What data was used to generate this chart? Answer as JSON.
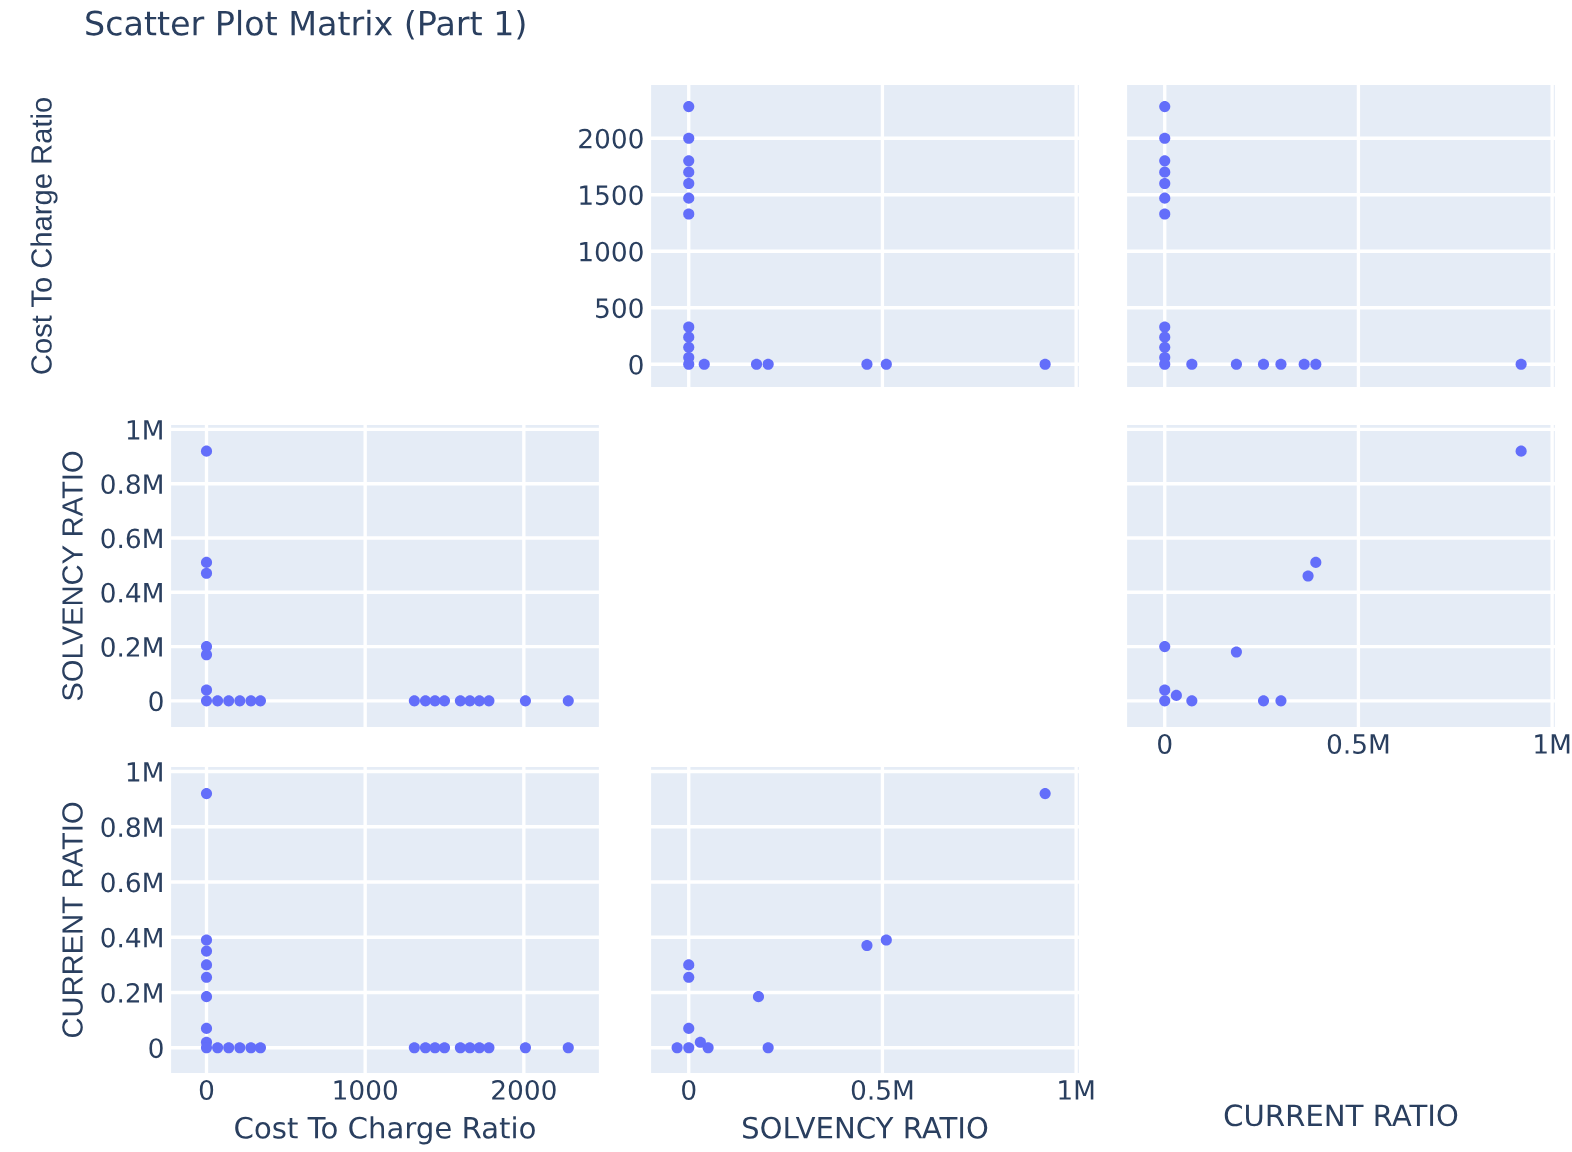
{
  "chart_data": [
    {
      "type": "scatter",
      "title": "Scatter Plot Matrix (Part 1)",
      "ylabel": "Cost To Charge Ratio",
      "tick_labels": "y",
      "grid": true,
      "marker": "circle",
      "xlim": [
        -100000,
        1010000
      ],
      "ylim": [
        -210,
        2480
      ],
      "xticks": [
        {
          "value": 0,
          "label": null
        },
        {
          "value": 500000,
          "label": null
        },
        {
          "value": 1000000,
          "label": null
        }
      ],
      "yticks": [
        0,
        500,
        1000,
        1500,
        2000
      ],
      "x": [
        0,
        0,
        0,
        0,
        0,
        0,
        0,
        0,
        0,
        0,
        0,
        0,
        40000,
        175000,
        205000,
        460000,
        510000,
        920000
      ],
      "series": [
        {
          "color": "#636efa",
          "values": [
            2280,
            2000,
            1800,
            1700,
            1600,
            1470,
            1330,
            330,
            240,
            150,
            60,
            0,
            0,
            0,
            0,
            0,
            0,
            0
          ]
        }
      ]
    },
    {
      "type": "scatter",
      "tick_labels": false,
      "grid": true,
      "marker": "circle",
      "xlim": [
        -100000,
        1010000
      ],
      "ylim": [
        -210,
        2480
      ],
      "xticks": [
        {
          "value": 0,
          "label": null
        },
        {
          "value": 500000,
          "label": null
        },
        {
          "value": 1000000,
          "label": null
        }
      ],
      "yticks": [
        {
          "value": 0,
          "label": null
        },
        {
          "value": 500,
          "label": null
        },
        {
          "value": 1000,
          "label": null
        },
        {
          "value": 1500,
          "label": null
        },
        {
          "value": 2000,
          "label": null
        }
      ],
      "x": [
        0,
        0,
        0,
        0,
        0,
        0,
        0,
        0,
        0,
        0,
        0,
        0,
        70000,
        185000,
        255000,
        300000,
        360000,
        390000,
        920000
      ],
      "series": [
        {
          "color": "#636efa",
          "values": [
            2280,
            2000,
            1800,
            1700,
            1600,
            1470,
            1330,
            330,
            240,
            150,
            60,
            0,
            0,
            0,
            0,
            0,
            0,
            0,
            0
          ]
        }
      ]
    },
    {
      "type": "scatter",
      "ylabel": "SOLVENCY RATIO",
      "tick_labels": "y",
      "grid": true,
      "marker": "circle",
      "xlim": [
        -230,
        2480
      ],
      "ylim": [
        -100000,
        1020000
      ],
      "xticks": [
        {
          "value": 0,
          "label": null
        },
        {
          "value": 1000,
          "label": null
        },
        {
          "value": 2000,
          "label": null
        }
      ],
      "yticks": [
        0,
        {
          "value": 200000,
          "label": "0.2M"
        },
        {
          "value": 400000,
          "label": "0.4M"
        },
        {
          "value": 600000,
          "label": "0.6M"
        },
        {
          "value": 800000,
          "label": "0.8M"
        },
        {
          "value": 1000000,
          "label": "1M"
        }
      ],
      "x": [
        0,
        0,
        0,
        0,
        0,
        0,
        0,
        70,
        140,
        210,
        280,
        340,
        1310,
        1380,
        1440,
        1500,
        1600,
        1660,
        1720,
        1780,
        2010,
        2280
      ],
      "series": [
        {
          "color": "#636efa",
          "values": [
            920000,
            510000,
            470000,
            200000,
            170000,
            40000,
            0,
            0,
            0,
            0,
            0,
            0,
            0,
            0,
            0,
            0,
            0,
            0,
            0,
            0,
            0,
            0
          ]
        }
      ]
    },
    {
      "type": "scatter",
      "xlabel": "CURRENT RATIO",
      "tick_labels": "x",
      "grid": true,
      "marker": "circle",
      "xlim": [
        -100000,
        1010000
      ],
      "ylim": [
        -100000,
        1020000
      ],
      "xticks": [
        0,
        {
          "value": 500000,
          "label": "0.5M"
        },
        {
          "value": 1000000,
          "label": "1M"
        }
      ],
      "yticks": [
        {
          "value": 0,
          "label": null
        },
        {
          "value": 200000,
          "label": null
        },
        {
          "value": 400000,
          "label": null
        },
        {
          "value": 600000,
          "label": null
        },
        {
          "value": 800000,
          "label": null
        },
        {
          "value": 1000000,
          "label": null
        }
      ],
      "x": [
        0,
        185000,
        370000,
        390000,
        920000,
        70000,
        255000,
        300000,
        0,
        0,
        30000
      ],
      "series": [
        {
          "color": "#636efa",
          "values": [
            200000,
            180000,
            460000,
            510000,
            920000,
            0,
            0,
            0,
            0,
            40000,
            20000
          ]
        }
      ]
    },
    {
      "type": "scatter",
      "xlabel": "Cost To Charge Ratio",
      "ylabel": "CURRENT RATIO",
      "grid": true,
      "marker": "circle",
      "xlim": [
        -230,
        2480
      ],
      "ylim": [
        -95000,
        1020000
      ],
      "xticks": [
        0,
        1000,
        2000
      ],
      "yticks": [
        0,
        {
          "value": 200000,
          "label": "0.2M"
        },
        {
          "value": 400000,
          "label": "0.4M"
        },
        {
          "value": 600000,
          "label": "0.6M"
        },
        {
          "value": 800000,
          "label": "0.8M"
        },
        {
          "value": 1000000,
          "label": "1M"
        }
      ],
      "x": [
        0,
        0,
        0,
        0,
        0,
        0,
        0,
        0,
        0,
        70,
        140,
        210,
        280,
        340,
        1310,
        1380,
        1440,
        1500,
        1600,
        1660,
        1720,
        1780,
        2010,
        2280
      ],
      "series": [
        {
          "color": "#636efa",
          "values": [
            920000,
            390000,
            350000,
            300000,
            255000,
            185000,
            70000,
            20000,
            0,
            0,
            0,
            0,
            0,
            0,
            0,
            0,
            0,
            0,
            0,
            0,
            0,
            0,
            0,
            0
          ]
        }
      ]
    },
    {
      "type": "scatter",
      "xlabel": "SOLVENCY RATIO",
      "tick_labels": "x",
      "grid": true,
      "marker": "circle",
      "xlim": [
        -100000,
        1010000
      ],
      "ylim": [
        -95000,
        1020000
      ],
      "xticks": [
        0,
        {
          "value": 500000,
          "label": "0.5M"
        },
        {
          "value": 1000000,
          "label": "1M"
        }
      ],
      "yticks": [
        {
          "value": 0,
          "label": null
        },
        {
          "value": 200000,
          "label": null
        },
        {
          "value": 400000,
          "label": null
        },
        {
          "value": 600000,
          "label": null
        },
        {
          "value": 800000,
          "label": null
        },
        {
          "value": 1000000,
          "label": null
        }
      ],
      "x": [
        0,
        0,
        0,
        0,
        30000,
        -30000,
        50000,
        180000,
        205000,
        460000,
        510000,
        920000
      ],
      "series": [
        {
          "color": "#636efa",
          "values": [
            300000,
            255000,
            70000,
            0,
            20000,
            0,
            0,
            185000,
            0,
            370000,
            390000,
            920000
          ]
        }
      ]
    }
  ]
}
